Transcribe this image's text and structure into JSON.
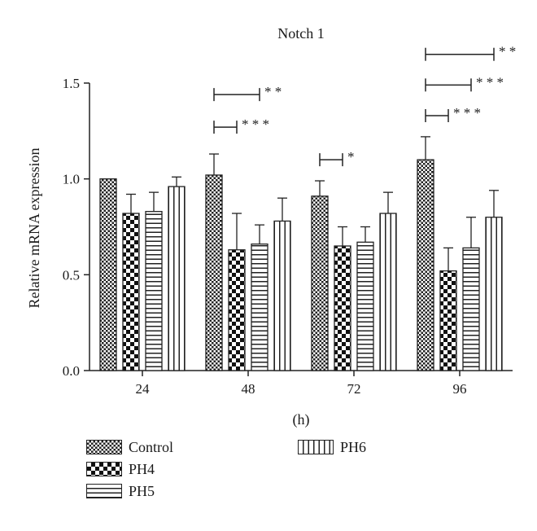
{
  "chart_data": {
    "type": "bar",
    "title": "Notch 1",
    "xlabel": "(h)",
    "ylabel": "Relative mRNA expression",
    "ylim": [
      0,
      1.5
    ],
    "yticks": [
      "0.0",
      "0.5",
      "1.0",
      "1.5"
    ],
    "categories": [
      "24",
      "48",
      "72",
      "96"
    ],
    "series": [
      {
        "name": "Control",
        "pattern": "fine-checker",
        "values": [
          1.0,
          1.02,
          0.91,
          1.1
        ],
        "errors": [
          0,
          0.11,
          0.08,
          0.12
        ]
      },
      {
        "name": "PH4",
        "pattern": "coarse-checker",
        "values": [
          0.82,
          0.63,
          0.65,
          0.52
        ],
        "errors": [
          0.1,
          0.19,
          0.1,
          0.12
        ]
      },
      {
        "name": "PH5",
        "pattern": "horizontal-lines",
        "values": [
          0.83,
          0.66,
          0.67,
          0.64
        ],
        "errors": [
          0.1,
          0.1,
          0.08,
          0.16
        ]
      },
      {
        "name": "PH6",
        "pattern": "vertical-lines",
        "values": [
          0.96,
          0.78,
          0.82,
          0.8
        ],
        "errors": [
          0.05,
          0.12,
          0.11,
          0.14
        ]
      }
    ],
    "significance": [
      {
        "category": "48",
        "from": "Control",
        "to": "PH4",
        "label": "* * *",
        "level": 1.27
      },
      {
        "category": "48",
        "from": "Control",
        "to": "PH5",
        "label": "* *",
        "level": 1.44
      },
      {
        "category": "72",
        "from": "Control",
        "to": "PH4",
        "label": "*",
        "level": 1.1
      },
      {
        "category": "96",
        "from": "Control",
        "to": "PH4",
        "label": "* * *",
        "level": 1.33
      },
      {
        "category": "96",
        "from": "Control",
        "to": "PH5",
        "label": "* * *",
        "level": 1.49
      },
      {
        "category": "96",
        "from": "Control",
        "to": "PH6",
        "label": "* *",
        "level": 1.65
      }
    ],
    "legend_position": "bottom-left",
    "grid": false
  }
}
